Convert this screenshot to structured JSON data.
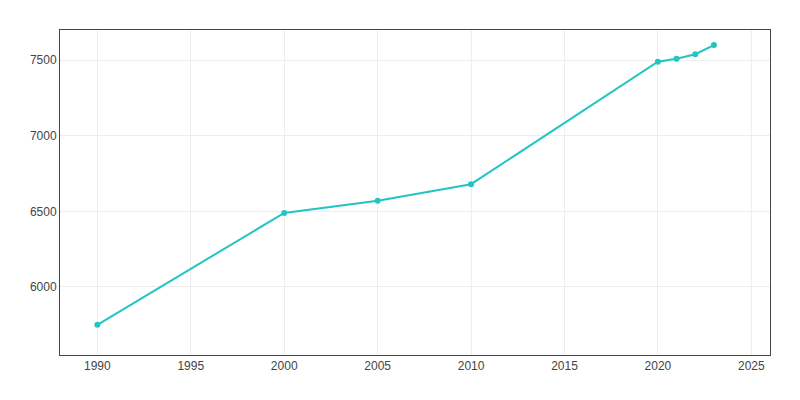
{
  "chart_data": {
    "type": "line",
    "x": [
      1990,
      2000,
      2005,
      2010,
      2020,
      2021,
      2022,
      2023
    ],
    "values": [
      5750,
      6490,
      6570,
      6680,
      7490,
      7510,
      7540,
      7600
    ],
    "color": "#22c4c4",
    "marker": "circle",
    "xlim": [
      1988,
      2026
    ],
    "ylim": [
      5550,
      7700
    ],
    "xticks": [
      1990,
      1995,
      2000,
      2005,
      2010,
      2015,
      2020,
      2025
    ],
    "yticks": [
      6000,
      6500,
      7000,
      7500
    ],
    "grid": true
  }
}
